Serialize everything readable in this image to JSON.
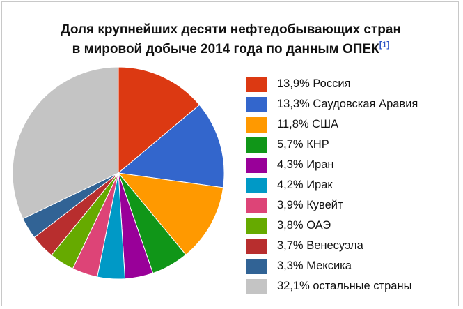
{
  "chart_data": {
    "type": "pie",
    "title_line1": "Доля крупнейших десяти нефтедобывающих стран",
    "title_line2": "в мировой добыче 2014 года по данным ОПЕК",
    "title_ref": "[1]",
    "slices": [
      {
        "label": "13,9% Россия",
        "value": 13.9,
        "color": "#dc3912"
      },
      {
        "label": "13,3% Саудовская Аравия",
        "value": 13.3,
        "color": "#3366cc"
      },
      {
        "label": "11,8% США",
        "value": 11.8,
        "color": "#ff9900"
      },
      {
        "label": "5,7% КНР",
        "value": 5.7,
        "color": "#109618"
      },
      {
        "label": "4,3% Иран",
        "value": 4.3,
        "color": "#990099"
      },
      {
        "label": "4,2% Ирак",
        "value": 4.2,
        "color": "#0099c6"
      },
      {
        "label": "3,9% Кувейт",
        "value": 3.9,
        "color": "#dd4477"
      },
      {
        "label": "3,8% ОАЭ",
        "value": 3.8,
        "color": "#66aa00"
      },
      {
        "label": "3,7% Венесуэла",
        "value": 3.7,
        "color": "#b82e2e"
      },
      {
        "label": "3,3% Мексика",
        "value": 3.3,
        "color": "#316395"
      },
      {
        "label": "32,1% остальные страны",
        "value": 32.1,
        "color": "#c4c4c4"
      }
    ],
    "start_angle": "top",
    "direction": "clockwise",
    "legend_position": "right"
  }
}
